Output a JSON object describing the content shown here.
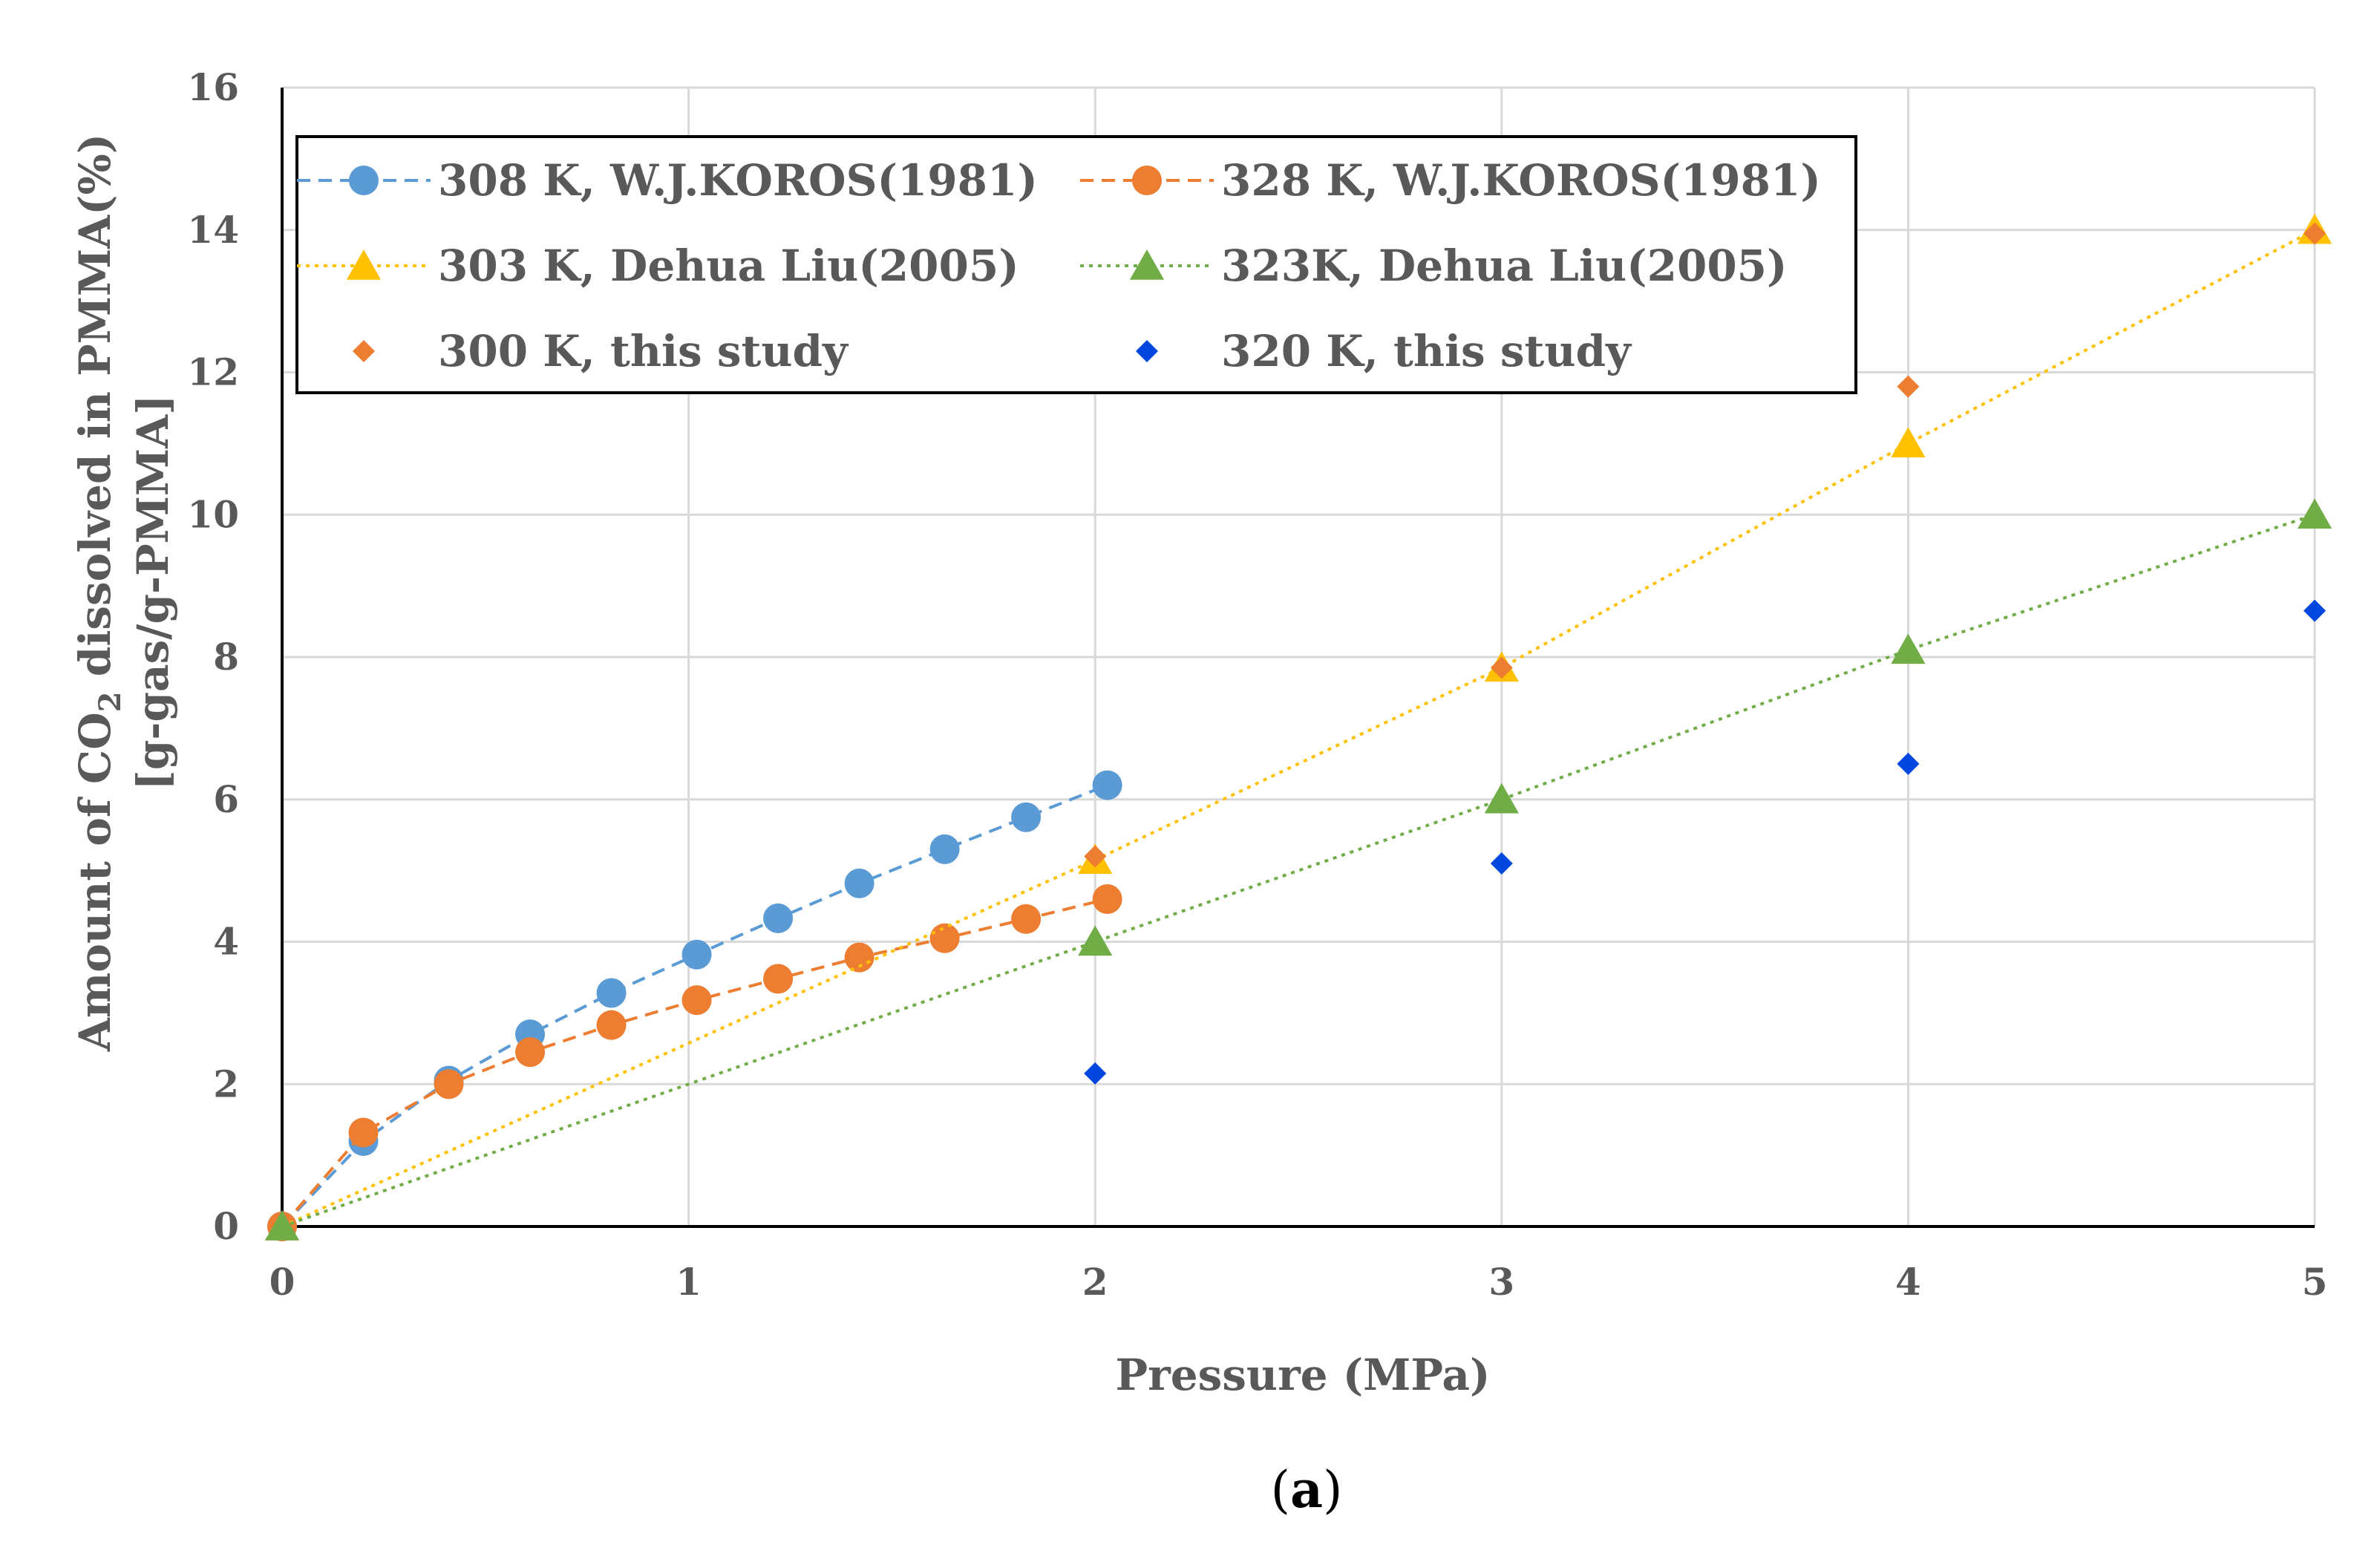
{
  "chart_data": {
    "type": "scatter",
    "title": "",
    "xlabel": "Pressure (MPa)",
    "ylabel": {
      "line1_pre": "Amount of CO",
      "line1_sub": "2",
      "line1_post": " dissolved in PMMA(%)",
      "line2": "[g-gas/g-PMMA]"
    },
    "xlim": [
      0,
      5
    ],
    "ylim": [
      0,
      16
    ],
    "x_ticks": [
      "0",
      "1",
      "2",
      "3",
      "4",
      "5"
    ],
    "y_ticks": [
      "0",
      "2",
      "4",
      "6",
      "8",
      "10",
      "12",
      "14",
      "16"
    ],
    "grid": true,
    "legend_position": "top-left",
    "panel_label": {
      "open": "(",
      "letter": "a",
      "close": ")"
    },
    "series": [
      {
        "name": "308 K, W.J.KOROS(1981)",
        "color": "#5B9BD5",
        "marker": "circle",
        "line": "dashed",
        "x": [
          0,
          0.2,
          0.41,
          0.61,
          0.81,
          1.02,
          1.22,
          1.42,
          1.63,
          1.83,
          2.03
        ],
        "y": [
          0,
          1.2,
          2.05,
          2.7,
          3.28,
          3.82,
          4.33,
          4.82,
          5.3,
          5.75,
          6.2
        ]
      },
      {
        "name": "328 K, W.J.KOROS(1981)",
        "color": "#ED7D31",
        "marker": "circle",
        "line": "dashed",
        "x": [
          0,
          0.2,
          0.41,
          0.61,
          0.81,
          1.02,
          1.22,
          1.42,
          1.63,
          1.83,
          2.03
        ],
        "y": [
          0,
          1.32,
          2.0,
          2.45,
          2.83,
          3.18,
          3.48,
          3.78,
          4.05,
          4.32,
          4.6
        ]
      },
      {
        "name": "303 K, Dehua Liu(2005)",
        "color": "#FFC000",
        "marker": "triangle",
        "line": "dotted",
        "x": [
          0,
          2,
          3,
          4,
          5
        ],
        "y": [
          0,
          5.15,
          7.85,
          11.0,
          14.0
        ]
      },
      {
        "name": "323K, Dehua Liu(2005)",
        "color": "#70AD47",
        "marker": "triangle",
        "line": "dotted",
        "x": [
          0,
          2,
          3,
          4,
          5
        ],
        "y": [
          0,
          4.0,
          6.0,
          8.1,
          10.0
        ]
      },
      {
        "name": "300 K, this study",
        "color": "#ED7D31",
        "marker": "diamond",
        "line": "none",
        "x": [
          2,
          3,
          4,
          5
        ],
        "y": [
          5.2,
          7.85,
          11.8,
          13.95
        ]
      },
      {
        "name": "320 K, this study",
        "color": "#0047E0",
        "marker": "diamond",
        "line": "none",
        "x": [
          2,
          3,
          4,
          5
        ],
        "y": [
          2.15,
          5.1,
          6.5,
          8.65
        ]
      }
    ]
  }
}
